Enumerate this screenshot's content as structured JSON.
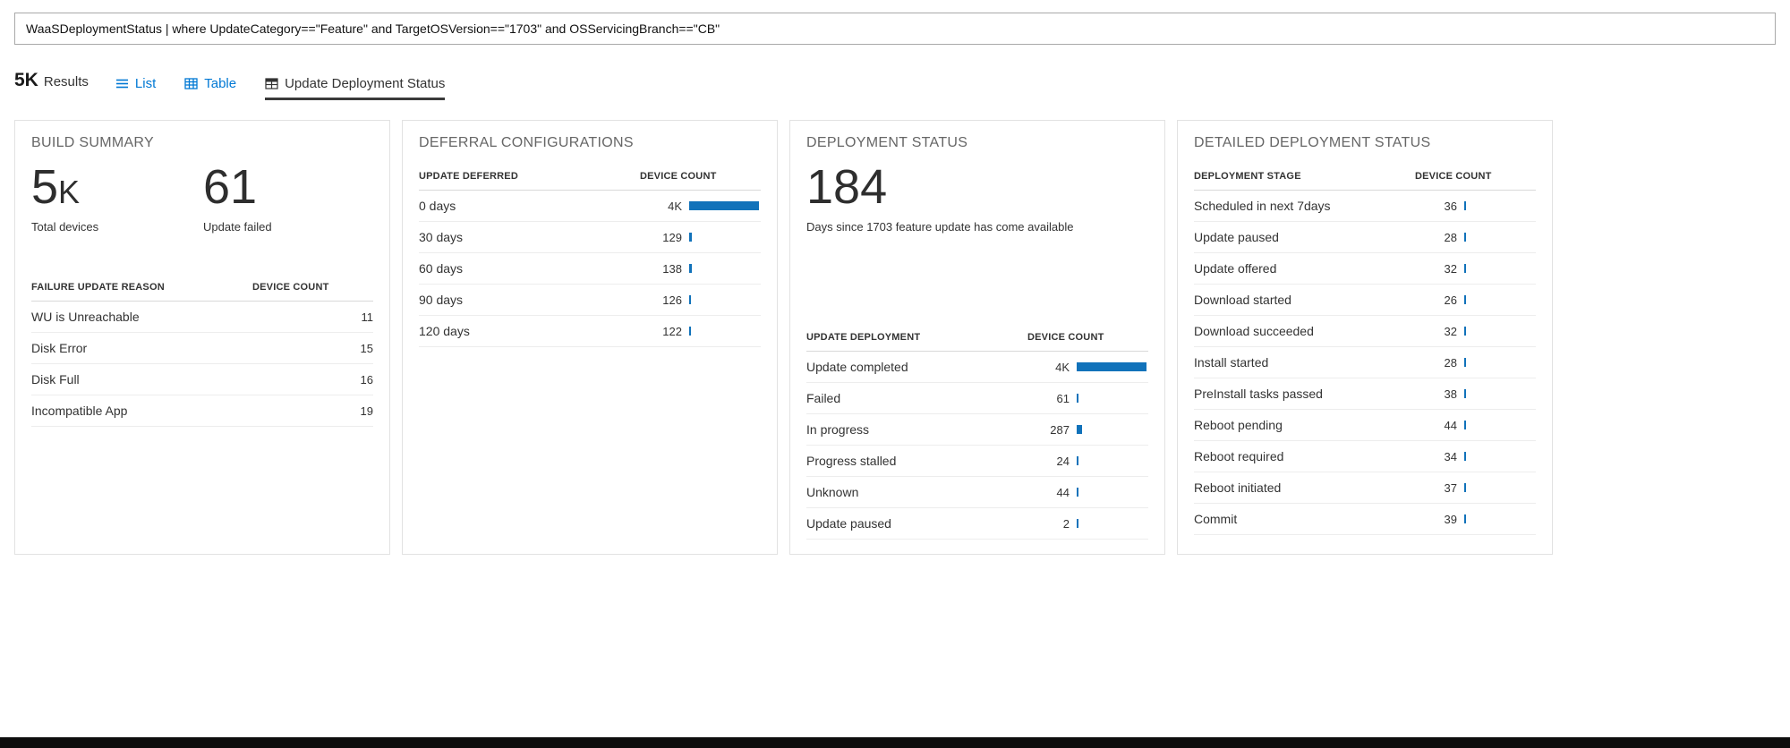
{
  "colors": {
    "accent": "#0078d4",
    "bar": "#1172ba"
  },
  "query": {
    "text": "WaaSDeploymentStatus | where UpdateCategory==\"Feature\" and TargetOSVersion==\"1703\" and OSServicingBranch==\"CB\""
  },
  "toolbar": {
    "result_count": "5K",
    "result_label": "Results",
    "tabs": [
      {
        "label": "List"
      },
      {
        "label": "Table"
      },
      {
        "label": "Update Deployment Status"
      }
    ]
  },
  "panels": {
    "build_summary": {
      "title": "BUILD SUMMARY",
      "metrics": [
        {
          "value": "5",
          "suffix": "K",
          "label": "Total devices"
        },
        {
          "value": "61",
          "suffix": "",
          "label": "Update failed"
        }
      ],
      "headers": {
        "left": "FAILURE UPDATE REASON",
        "right": "DEVICE COUNT"
      },
      "rows": [
        {
          "label": "WU is Unreachable",
          "value": "11",
          "num": 11
        },
        {
          "label": "Disk Error",
          "value": "15",
          "num": 15
        },
        {
          "label": "Disk Full",
          "value": "16",
          "num": 16
        },
        {
          "label": "Incompatible App",
          "value": "19",
          "num": 19
        }
      ]
    },
    "deferral_configurations": {
      "title": "DEFERRAL CONFIGURATIONS",
      "headers": {
        "left": "UPDATE DEFERRED",
        "right": "DEVICE COUNT"
      },
      "max": 4000,
      "rows": [
        {
          "label": "0 days",
          "value": "4K",
          "num": 4000
        },
        {
          "label": "30 days",
          "value": "129",
          "num": 129
        },
        {
          "label": "60 days",
          "value": "138",
          "num": 138
        },
        {
          "label": "90 days",
          "value": "126",
          "num": 126
        },
        {
          "label": "120 days",
          "value": "122",
          "num": 122
        }
      ]
    },
    "deployment_status": {
      "title": "DEPLOYMENT STATUS",
      "metric": {
        "value": "184",
        "label": "Days since 1703 feature update has come available"
      },
      "headers": {
        "left": "UPDATE DEPLOYMENT",
        "right": "DEVICE COUNT"
      },
      "max": 4000,
      "rows": [
        {
          "label": "Update completed",
          "value": "4K",
          "num": 4000
        },
        {
          "label": "Failed",
          "value": "61",
          "num": 61
        },
        {
          "label": "In progress",
          "value": "287",
          "num": 287
        },
        {
          "label": "Progress stalled",
          "value": "24",
          "num": 24
        },
        {
          "label": "Unknown",
          "value": "44",
          "num": 44
        },
        {
          "label": "Update paused",
          "value": "2",
          "num": 2
        }
      ]
    },
    "detailed_deployment_status": {
      "title": "DETAILED DEPLOYMENT STATUS",
      "headers": {
        "left": "DEPLOYMENT STAGE",
        "right": "DEVICE COUNT"
      },
      "max": 4000,
      "rows": [
        {
          "label": "Scheduled in next 7days",
          "value": "36",
          "num": 36
        },
        {
          "label": "Update paused",
          "value": "28",
          "num": 28
        },
        {
          "label": "Update offered",
          "value": "32",
          "num": 32
        },
        {
          "label": "Download started",
          "value": "26",
          "num": 26
        },
        {
          "label": "Download succeeded",
          "value": "32",
          "num": 32
        },
        {
          "label": "Install started",
          "value": "28",
          "num": 28
        },
        {
          "label": "PreInstall tasks passed",
          "value": "38",
          "num": 38
        },
        {
          "label": "Reboot pending",
          "value": "44",
          "num": 44
        },
        {
          "label": "Reboot required",
          "value": "34",
          "num": 34
        },
        {
          "label": "Reboot initiated",
          "value": "37",
          "num": 37
        },
        {
          "label": "Commit",
          "value": "39",
          "num": 39
        }
      ]
    }
  }
}
